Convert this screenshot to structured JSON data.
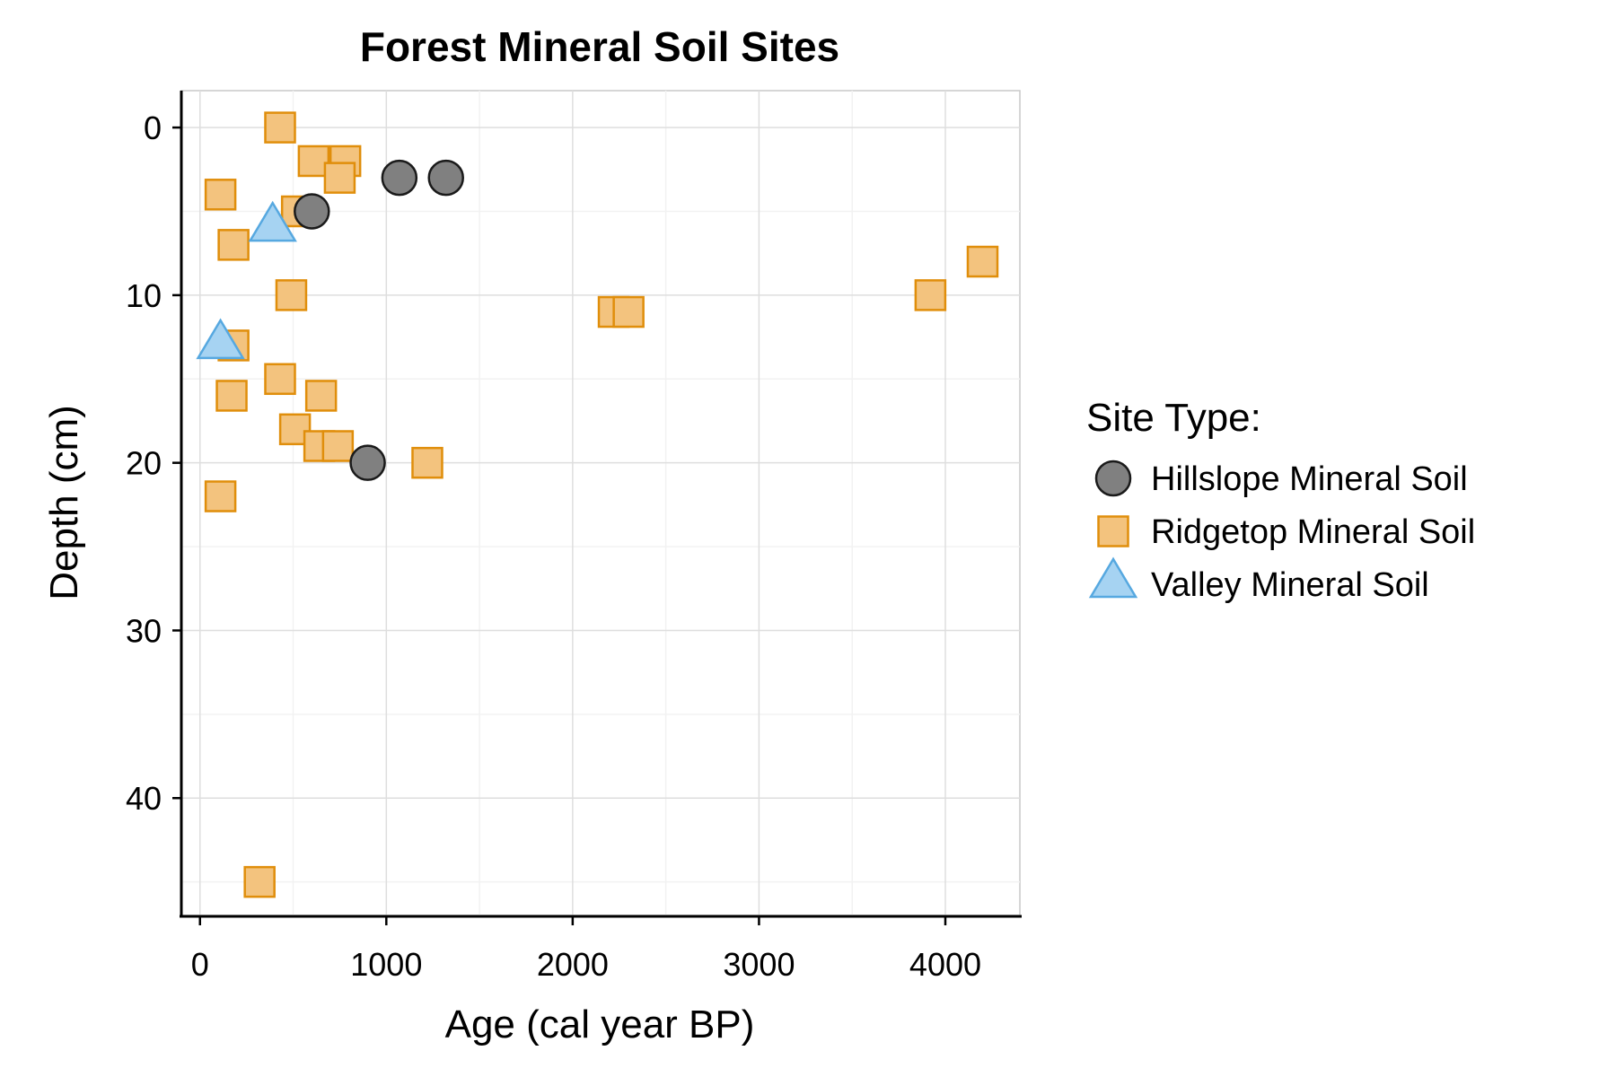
{
  "chart_data": {
    "type": "scatter",
    "title": "Forest Mineral Soil Sites",
    "xlabel": "Age (cal year BP)",
    "ylabel": "Depth (cm)",
    "xlim": [
      -100,
      4400
    ],
    "ylim": [
      47,
      -2.2
    ],
    "y_reversed": true,
    "x_ticks": [
      0,
      1000,
      2000,
      3000,
      4000
    ],
    "y_ticks": [
      0,
      10,
      20,
      30,
      40
    ],
    "grid": true,
    "legend": {
      "title": "Site Type:",
      "position": "right"
    },
    "series": [
      {
        "name": "Hillslope Mineral Soil",
        "marker": "circle",
        "fill": "#808080",
        "stroke": "#1a1a1a",
        "points": [
          {
            "x": 1070,
            "y": 3
          },
          {
            "x": 1320,
            "y": 3
          },
          {
            "x": 600,
            "y": 5
          },
          {
            "x": 900,
            "y": 20
          }
        ]
      },
      {
        "name": "Ridgetop Mineral Soil",
        "marker": "square",
        "fill": "#F3C37E",
        "stroke": "#E08E0B",
        "points": [
          {
            "x": 430,
            "y": 0
          },
          {
            "x": 610,
            "y": 2
          },
          {
            "x": 780,
            "y": 2
          },
          {
            "x": 750,
            "y": 3
          },
          {
            "x": 110,
            "y": 4
          },
          {
            "x": 520,
            "y": 5
          },
          {
            "x": 180,
            "y": 7
          },
          {
            "x": 490,
            "y": 10
          },
          {
            "x": 2220,
            "y": 11
          },
          {
            "x": 2300,
            "y": 11
          },
          {
            "x": 3920,
            "y": 10
          },
          {
            "x": 4200,
            "y": 8
          },
          {
            "x": 180,
            "y": 13
          },
          {
            "x": 430,
            "y": 15
          },
          {
            "x": 170,
            "y": 16
          },
          {
            "x": 650,
            "y": 16
          },
          {
            "x": 510,
            "y": 18
          },
          {
            "x": 640,
            "y": 19
          },
          {
            "x": 740,
            "y": 19
          },
          {
            "x": 1220,
            "y": 20
          },
          {
            "x": 110,
            "y": 22
          },
          {
            "x": 320,
            "y": 45
          }
        ]
      },
      {
        "name": "Valley Mineral Soil",
        "marker": "triangle",
        "fill": "#A6D3F2",
        "stroke": "#56A8E0",
        "points": [
          {
            "x": 390,
            "y": 6
          },
          {
            "x": 110,
            "y": 13
          }
        ]
      }
    ]
  }
}
